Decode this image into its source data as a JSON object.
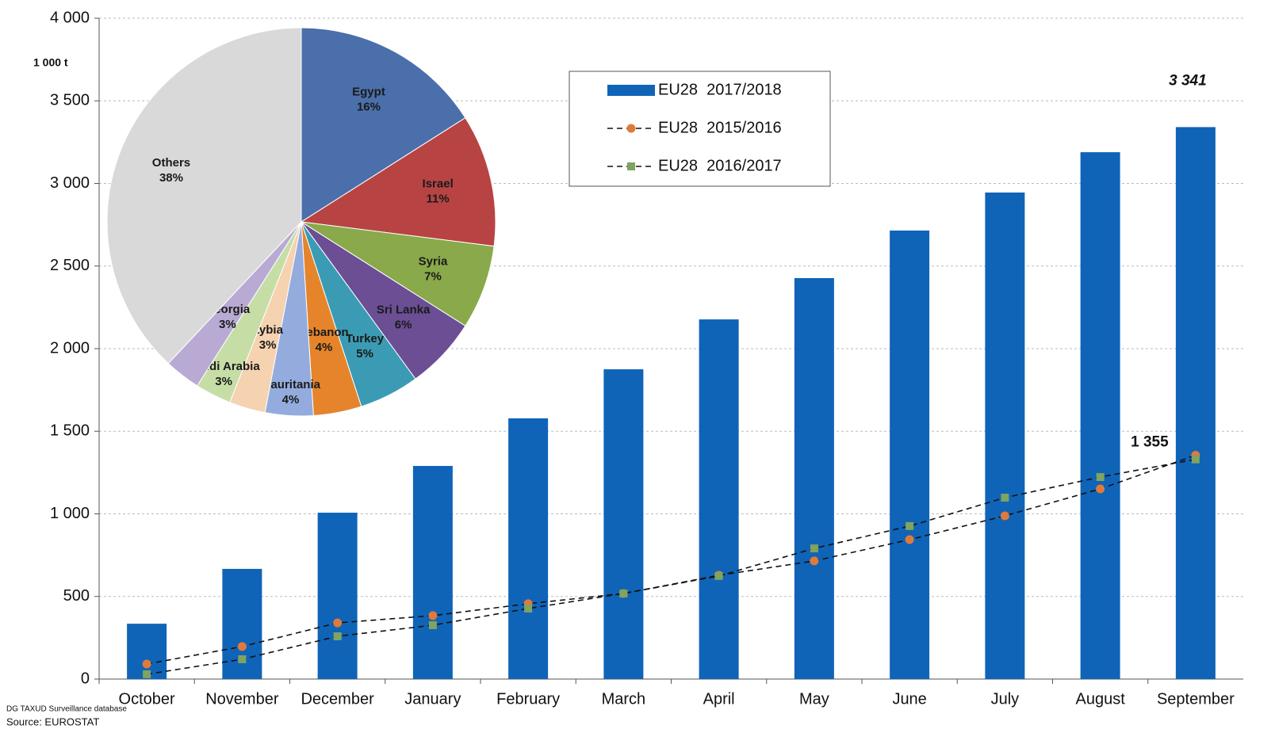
{
  "chart_data": [
    {
      "type": "bar",
      "unit_label": "1 000 t",
      "footnotes": [
        "DG TAXUD Surveillance database",
        "Source: EUROSTAT"
      ],
      "categories": [
        "October",
        "November",
        "December",
        "January",
        "February",
        "March",
        "April",
        "May",
        "June",
        "July",
        "August",
        "September"
      ],
      "series": [
        {
          "name": "EU28  2017/2018",
          "type": "bar",
          "color": "#0f64b8",
          "values": [
            335,
            667,
            1007,
            1290,
            1578,
            1875,
            2177,
            2427,
            2715,
            2945,
            3189,
            3341
          ],
          "value_labels": [
            null,
            null,
            null,
            null,
            null,
            null,
            null,
            null,
            null,
            null,
            null,
            "3 341"
          ]
        },
        {
          "name": "EU28  2015/2016",
          "type": "line",
          "color": "#e07a3a",
          "marker": "circle",
          "values": [
            91,
            197,
            340,
            384,
            456,
            518,
            628,
            715,
            844,
            988,
            1151,
            1355
          ],
          "value_labels": [
            null,
            null,
            null,
            null,
            null,
            null,
            null,
            null,
            null,
            null,
            null,
            "1 355"
          ]
        },
        {
          "name": "EU28  2016/2017",
          "type": "line",
          "color": "#7fa360",
          "marker": "square",
          "values": [
            29,
            120,
            259,
            326,
            427,
            518,
            624,
            791,
            926,
            1098,
            1223,
            1330
          ]
        }
      ],
      "ylim": [
        0,
        4000
      ],
      "yticks": [
        0,
        500,
        {
          "value": 1000,
          "label": "1 000"
        },
        {
          "value": 1500,
          "label": "1 500"
        },
        {
          "value": 2000,
          "label": "2 000"
        },
        {
          "value": 2500,
          "label": "2 500"
        },
        {
          "value": 3000,
          "label": "3 000"
        },
        {
          "value": 3500,
          "label": "3 500"
        },
        {
          "value": 4000,
          "label": "4 000"
        }
      ],
      "grid": true,
      "legend": true
    },
    {
      "type": "pie",
      "categories": [
        "Egypt",
        "Israel",
        "Syria",
        "Sri Lanka",
        "Turkey",
        "Lebanon",
        "Mauritania",
        "Lybia",
        "Saudi Arabia",
        "Georgia",
        "Others"
      ],
      "values": [
        16,
        11,
        7,
        6,
        5,
        4,
        4,
        3,
        3,
        3,
        38
      ],
      "value_labels": [
        "16%",
        "11%",
        "7%",
        "6%",
        "5%",
        "4%",
        "4%",
        "3%",
        "3%",
        "3%",
        "38%"
      ],
      "colors": [
        "#4a6faa",
        "#b74443",
        "#89a94a",
        "#6b4e94",
        "#3b9bb4",
        "#e5842b",
        "#93acdd",
        "#f5d2b0",
        "#c6dea6",
        "#b9aad3",
        "#d9d9d9"
      ]
    }
  ]
}
